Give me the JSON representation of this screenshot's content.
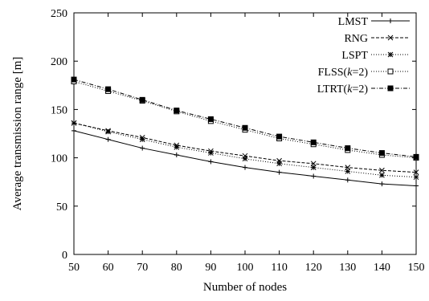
{
  "chart_data": {
    "type": "line",
    "xlabel": "Number of nodes",
    "ylabel": "Average transmission range [m]",
    "x": [
      50,
      60,
      70,
      80,
      90,
      100,
      110,
      120,
      130,
      140,
      150
    ],
    "xlim": [
      50,
      150
    ],
    "ylim": [
      0,
      250
    ],
    "yticks": [
      0,
      50,
      100,
      150,
      200,
      250
    ],
    "grid": false,
    "legend_position": "top-right",
    "series": [
      {
        "name": "LMST",
        "values": [
          128,
          119,
          110,
          103,
          96,
          90,
          85,
          81,
          77,
          73,
          71
        ],
        "color": "#000000",
        "dash": "solid",
        "marker": "plus"
      },
      {
        "name": "RNG",
        "values": [
          136,
          128,
          121,
          113,
          107,
          102,
          97,
          94,
          90,
          87,
          85
        ],
        "color": "#000000",
        "dash": "dashed",
        "marker": "cross"
      },
      {
        "name": "LSPT",
        "values": [
          136,
          127,
          119,
          111,
          105,
          99,
          94,
          90,
          86,
          82,
          80
        ],
        "color": "#000000",
        "dash": "dotted",
        "marker": "star"
      },
      {
        "name": "FLSS(k=2)",
        "name_parts": [
          "FLSS(",
          "k",
          "=2)"
        ],
        "values": [
          179,
          169,
          159,
          148,
          138,
          129,
          120,
          114,
          108,
          103,
          100
        ],
        "color": "#000000",
        "dash": "dotted",
        "marker": "open-square"
      },
      {
        "name": "LTRT(k=2)",
        "name_parts": [
          "LTRT(",
          "k",
          "=2)"
        ],
        "values": [
          181,
          171,
          160,
          149,
          140,
          131,
          122,
          116,
          110,
          105,
          101
        ],
        "color": "#000000",
        "dash": "dashdot",
        "marker": "filled-square"
      }
    ]
  }
}
